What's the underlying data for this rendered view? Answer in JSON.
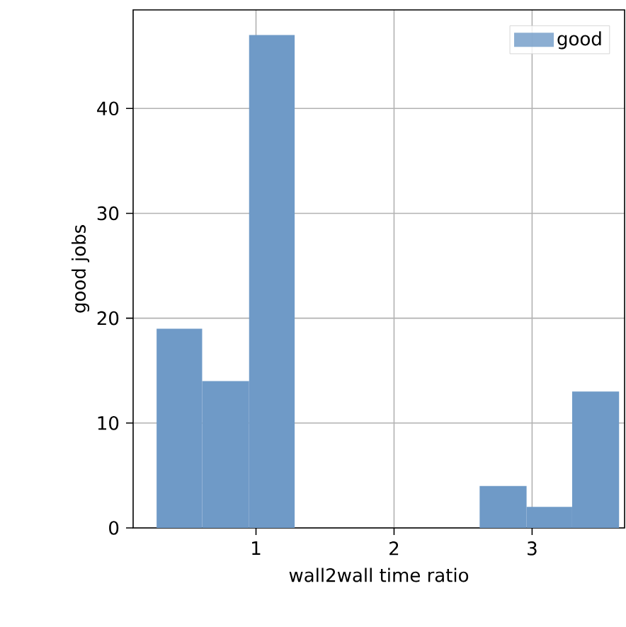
{
  "chart_data": {
    "type": "histogram",
    "xlabel": "wall2wall time ratio",
    "ylabel": "good jobs",
    "bins": [
      0.28,
      0.61,
      0.95,
      1.28,
      2.62,
      2.96,
      3.29,
      3.63
    ],
    "series": [
      {
        "name": "good",
        "color": "#6f9ac7",
        "values": [
          19,
          14,
          47,
          0,
          4,
          2,
          13
        ]
      }
    ],
    "xlim": [
      0.11,
      3.67
    ],
    "ylim": [
      0,
      49.4
    ],
    "xticks": [
      1,
      2,
      3
    ],
    "yticks": [
      0,
      10,
      20,
      30,
      40
    ],
    "grid": true,
    "legend": "top right"
  }
}
